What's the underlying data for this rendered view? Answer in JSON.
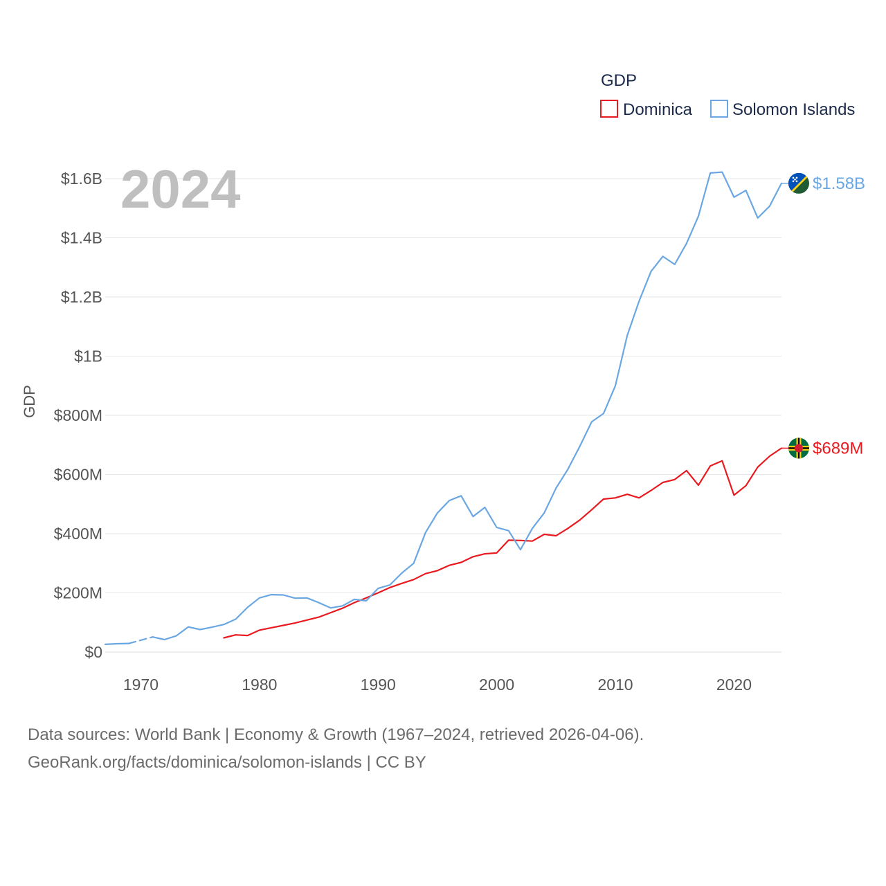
{
  "chart_data": {
    "type": "line",
    "title": "GDP",
    "year_label": "2024",
    "ylabel": "GDP",
    "xlim": [
      1967,
      2024
    ],
    "ylim": [
      0,
      1600000000
    ],
    "x_ticks": [
      1970,
      1980,
      1990,
      2000,
      2010,
      2020
    ],
    "y_ticks": [
      {
        "value": 0,
        "label": "$0"
      },
      {
        "value": 200000000,
        "label": "$200M"
      },
      {
        "value": 400000000,
        "label": "$400M"
      },
      {
        "value": 600000000,
        "label": "$600M"
      },
      {
        "value": 800000000,
        "label": "$800M"
      },
      {
        "value": 1000000000,
        "label": "$1B"
      },
      {
        "value": 1200000000,
        "label": "$1.2B"
      },
      {
        "value": 1400000000,
        "label": "$1.4B"
      },
      {
        "value": 1600000000,
        "label": "$1.6B"
      }
    ],
    "grid": true,
    "legend_title": "GDP",
    "legend_position": "top-right",
    "series": [
      {
        "name": "Dominica",
        "color": "#e8191f",
        "end_label": "$689M",
        "flag_icon": "dominica-flag-icon",
        "x": [
          1977,
          1978,
          1979,
          1980,
          1981,
          1982,
          1983,
          1984,
          1985,
          1986,
          1987,
          1988,
          1989,
          1990,
          1991,
          1992,
          1993,
          1994,
          1995,
          1996,
          1997,
          1998,
          1999,
          2000,
          2001,
          2002,
          2003,
          2004,
          2005,
          2006,
          2007,
          2008,
          2009,
          2010,
          2011,
          2012,
          2013,
          2014,
          2015,
          2016,
          2017,
          2018,
          2019,
          2020,
          2021,
          2022,
          2023,
          2024
        ],
        "values": [
          48000000,
          58000000,
          56000000,
          74000000,
          82000000,
          90000000,
          98000000,
          108000000,
          118000000,
          133000000,
          148000000,
          167000000,
          183000000,
          200000000,
          218000000,
          232000000,
          245000000,
          265000000,
          275000000,
          293000000,
          303000000,
          322000000,
          332000000,
          335000000,
          378000000,
          377000000,
          375000000,
          398000000,
          393000000,
          418000000,
          446000000,
          481000000,
          517000000,
          521000000,
          533000000,
          521000000,
          546000000,
          573000000,
          583000000,
          613000000,
          564000000,
          629000000,
          646000000,
          530000000,
          562000000,
          625000000,
          662000000,
          689000000
        ]
      },
      {
        "name": "Solomon Islands",
        "color": "#6aa7e2",
        "end_label": "$1.58B",
        "flag_icon": "solomon-islands-flag-icon",
        "x": [
          1967,
          1968,
          1969,
          1970,
          1971,
          1972,
          1973,
          1974,
          1975,
          1976,
          1977,
          1978,
          1979,
          1980,
          1981,
          1982,
          1983,
          1984,
          1985,
          1986,
          1987,
          1988,
          1989,
          1990,
          1991,
          1992,
          1993,
          1994,
          1995,
          1996,
          1997,
          1998,
          1999,
          2000,
          2001,
          2002,
          2003,
          2004,
          2005,
          2006,
          2007,
          2008,
          2009,
          2010,
          2011,
          2012,
          2013,
          2014,
          2015,
          2016,
          2017,
          2018,
          2019,
          2020,
          2021,
          2022,
          2023,
          2024
        ],
        "values": [
          26000000,
          28000000,
          29000000,
          40000000,
          51000000,
          42000000,
          55000000,
          85000000,
          76000000,
          84000000,
          93000000,
          111000000,
          151000000,
          183000000,
          194000000,
          193000000,
          182000000,
          183000000,
          167000000,
          149000000,
          156000000,
          178000000,
          173000000,
          215000000,
          227000000,
          267000000,
          300000000,
          404000000,
          470000000,
          512000000,
          528000000,
          458000000,
          489000000,
          421000000,
          410000000,
          346000000,
          418000000,
          470000000,
          554000000,
          618000000,
          695000000,
          778000000,
          806000000,
          900000000,
          1070000000,
          1186000000,
          1286000000,
          1337000000,
          1310000000,
          1381000000,
          1473000000,
          1619000000,
          1622000000,
          1537000000,
          1560000000,
          1467000000,
          1507000000,
          1584000000
        ],
        "dashed_segments": [
          [
            1969,
            1971
          ]
        ]
      }
    ]
  },
  "source": {
    "line1": "Data sources: World Bank | Economy & Growth (1967–2024, retrieved 2026-04-06).",
    "line2": "GeoRank.org/facts/dominica/solomon-islands | CC BY"
  }
}
